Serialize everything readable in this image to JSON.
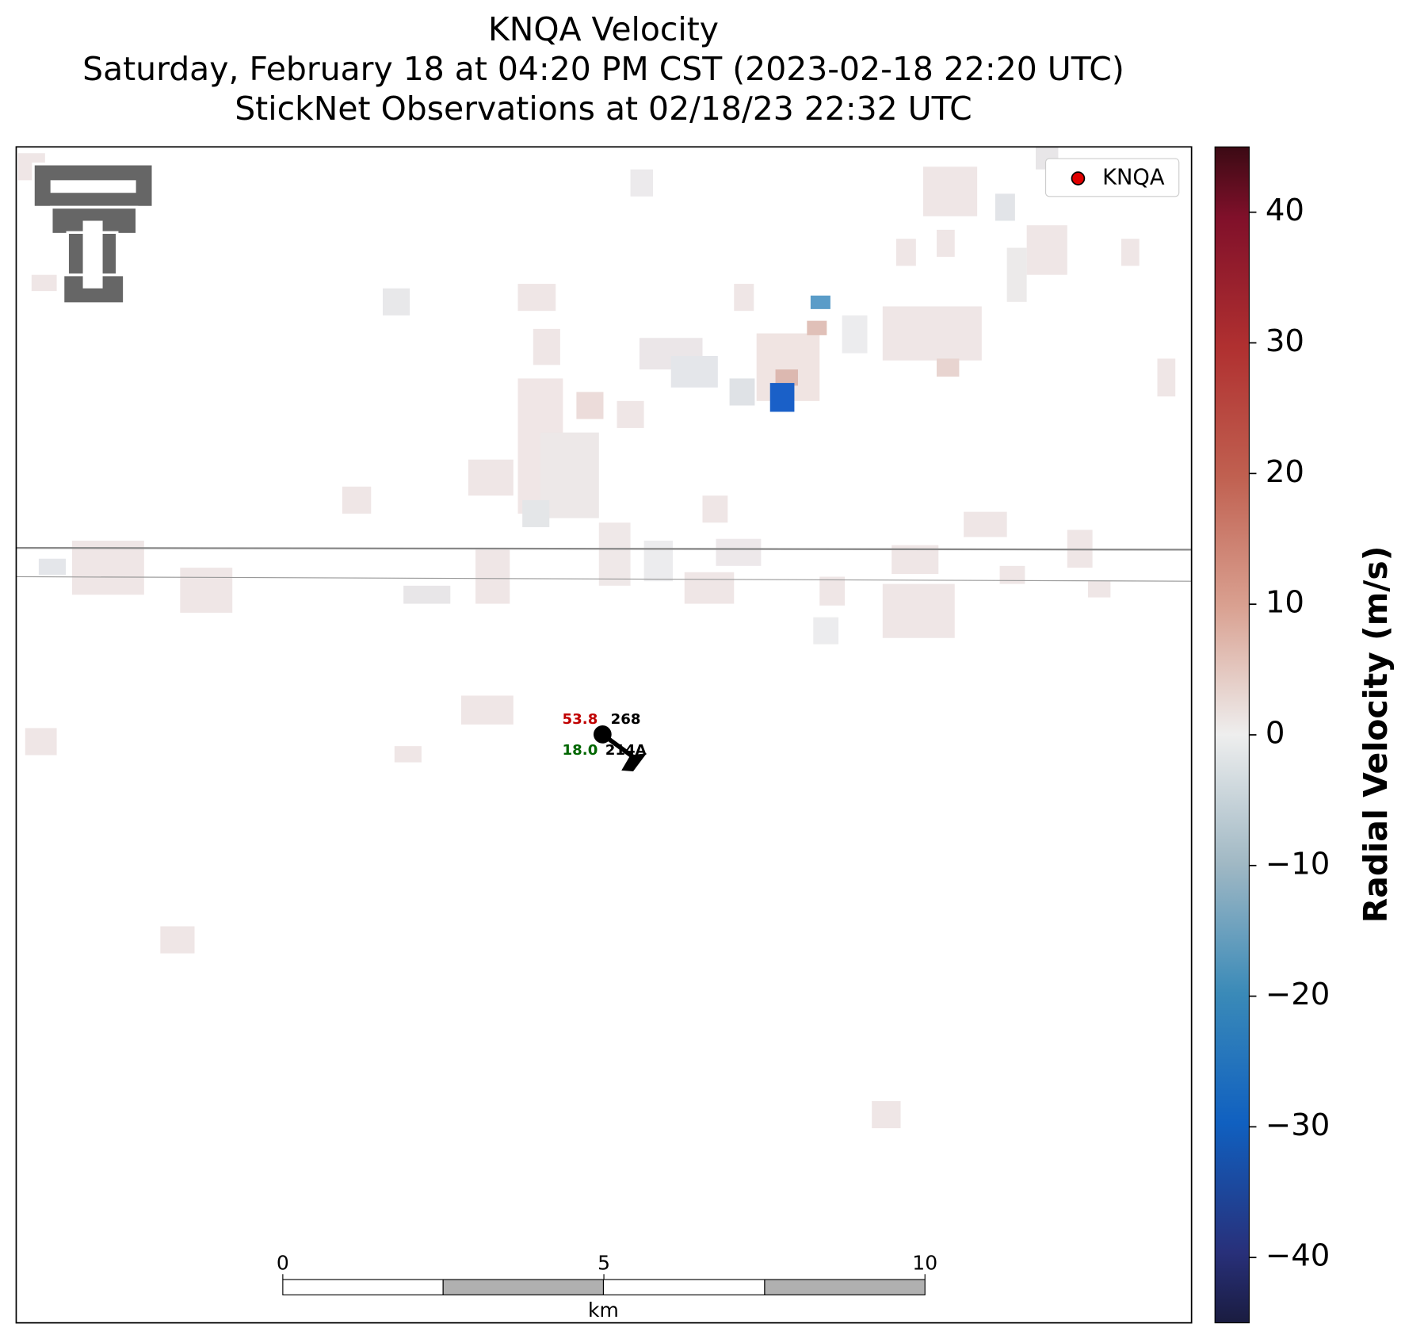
{
  "header": {
    "title": "KNQA Velocity",
    "subtitle": "Saturday, February 18 at 04:20 PM CST (2023-02-18 22:20 UTC)",
    "observation_time": "StickNet Observations at 02/18/23 22:32 UTC"
  },
  "legend": {
    "label": "KNQA",
    "color": "#e00000"
  },
  "colorbar": {
    "label": "Radial Velocity (m/s)",
    "lim": [
      -45,
      45
    ],
    "ticks": [
      {
        "value": -40,
        "label": "−40"
      },
      {
        "value": -30,
        "label": "−30"
      },
      {
        "value": -20,
        "label": "−20"
      },
      {
        "value": -10,
        "label": "−10"
      },
      0,
      10,
      20,
      30,
      40
    ]
  },
  "scale_bar": {
    "unit": "km",
    "ticks": [
      0,
      5,
      10
    ]
  },
  "station": {
    "temperature": "53.8",
    "dewpoint": "18.0",
    "pressure": "268",
    "id": "214A"
  }
}
